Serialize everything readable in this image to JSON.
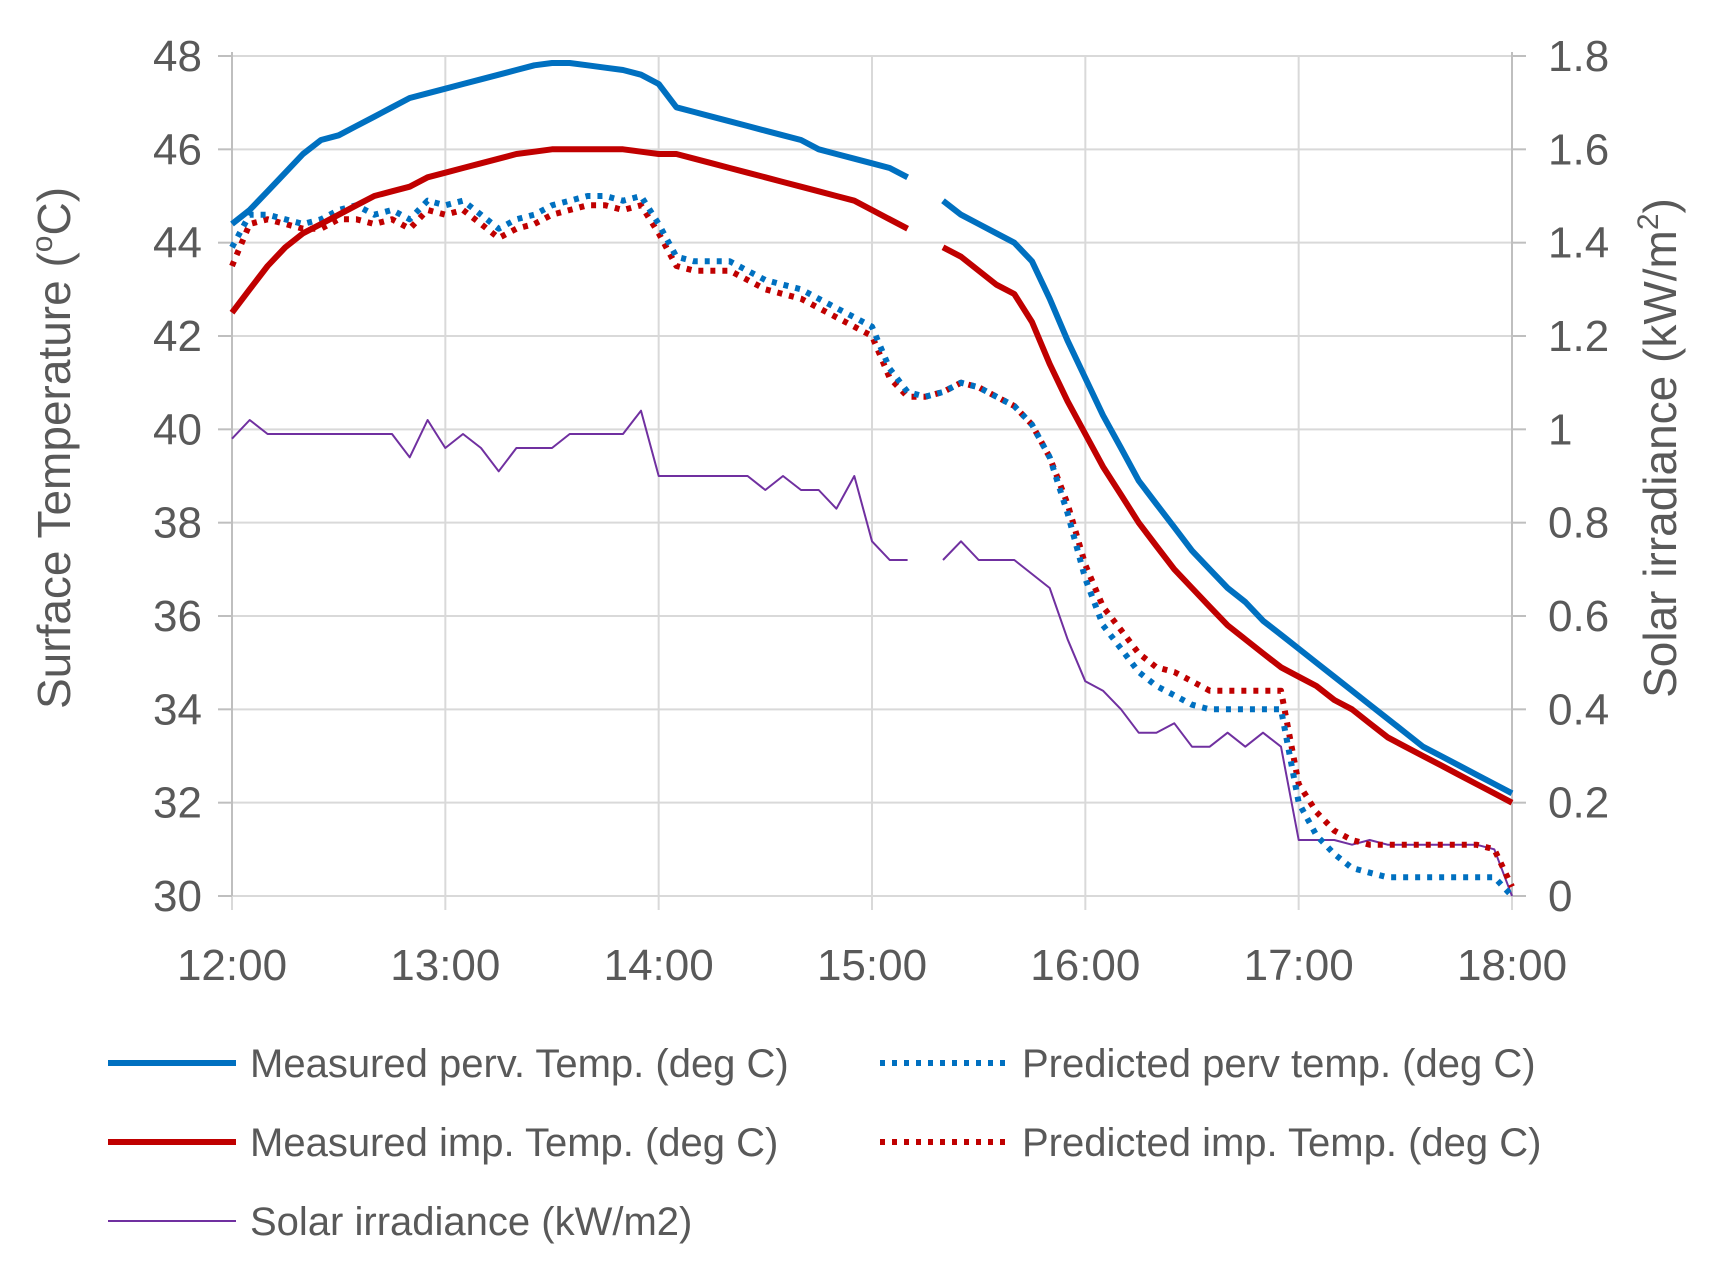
{
  "chart_data": {
    "type": "line",
    "y_label_text": "Surface Temperature (",
    "y_label_unit": "C)",
    "y_label_sup": "o",
    "y2_label_text": "Solar irradiance (kW/m",
    "y2_label_sup": "2",
    "y2_label_end": ")",
    "xlabel": "",
    "x_range": [
      12,
      18
    ],
    "ylim": [
      30,
      48
    ],
    "y2lim": [
      0,
      1.8
    ],
    "x_ticks": [
      12,
      13,
      14,
      15,
      16,
      17,
      18
    ],
    "x_tick_labels": [
      "12:00",
      "13:00",
      "14:00",
      "15:00",
      "16:00",
      "17:00",
      "18:00"
    ],
    "y_ticks": [
      30,
      32,
      34,
      36,
      38,
      40,
      42,
      44,
      46,
      48
    ],
    "y_tick_labels": [
      "30",
      "32",
      "34",
      "36",
      "38",
      "40",
      "42",
      "44",
      "46",
      "48"
    ],
    "y2_ticks": [
      0,
      0.2,
      0.4,
      0.6,
      0.8,
      1,
      1.2,
      1.4,
      1.6,
      1.8
    ],
    "y2_tick_labels": [
      "0",
      "0.2",
      "0.4",
      "0.6",
      "0.8",
      "1",
      "1.2",
      "1.4",
      "1.6",
      "1.8"
    ],
    "grid": true,
    "legend_position": "bottom",
    "series": [
      {
        "name": "Measured perv. Temp. (deg C)",
        "axis": "left",
        "color": "#0070C0",
        "style": "solid",
        "weight": "thick",
        "x": [
          12.0,
          12.083,
          12.167,
          12.25,
          12.333,
          12.417,
          12.5,
          12.583,
          12.667,
          12.75,
          12.833,
          12.917,
          13.0,
          13.083,
          13.167,
          13.25,
          13.333,
          13.417,
          13.5,
          13.583,
          13.667,
          13.75,
          13.833,
          13.917,
          14.0,
          14.083,
          14.167,
          14.25,
          14.333,
          14.417,
          14.5,
          14.583,
          14.667,
          14.75,
          14.833,
          14.917,
          15.0,
          15.083,
          15.167,
          null,
          15.333,
          15.417,
          15.5,
          15.583,
          15.667,
          15.75,
          15.833,
          15.917,
          16.0,
          16.083,
          16.167,
          16.25,
          16.333,
          16.417,
          16.5,
          16.583,
          16.667,
          16.75,
          16.833,
          16.917,
          17.0,
          17.083,
          17.167,
          17.25,
          17.333,
          17.417,
          17.5,
          17.583,
          17.667,
          17.75,
          17.833,
          17.917,
          18.0
        ],
        "values": [
          44.4,
          44.7,
          45.1,
          45.5,
          45.9,
          46.2,
          46.3,
          46.5,
          46.7,
          46.9,
          47.1,
          47.2,
          47.3,
          47.4,
          47.5,
          47.6,
          47.7,
          47.8,
          47.85,
          47.85,
          47.8,
          47.75,
          47.7,
          47.6,
          47.4,
          46.9,
          46.8,
          46.7,
          46.6,
          46.5,
          46.4,
          46.3,
          46.2,
          46.0,
          45.9,
          45.8,
          45.7,
          45.6,
          45.4,
          null,
          44.9,
          44.6,
          44.4,
          44.2,
          44.0,
          43.6,
          42.8,
          41.9,
          41.1,
          40.3,
          39.6,
          38.9,
          38.4,
          37.9,
          37.4,
          37.0,
          36.6,
          36.3,
          35.9,
          35.6,
          35.3,
          35.0,
          34.7,
          34.4,
          34.1,
          33.8,
          33.5,
          33.2,
          33.0,
          32.8,
          32.6,
          32.4,
          32.2
        ]
      },
      {
        "name": "Measured imp. Temp. (deg C)",
        "axis": "left",
        "color": "#C00000",
        "style": "solid",
        "weight": "thick",
        "x": [
          12.0,
          12.083,
          12.167,
          12.25,
          12.333,
          12.417,
          12.5,
          12.583,
          12.667,
          12.75,
          12.833,
          12.917,
          13.0,
          13.083,
          13.167,
          13.25,
          13.333,
          13.417,
          13.5,
          13.583,
          13.667,
          13.75,
          13.833,
          13.917,
          14.0,
          14.083,
          14.167,
          14.25,
          14.333,
          14.417,
          14.5,
          14.583,
          14.667,
          14.75,
          14.833,
          14.917,
          15.0,
          15.083,
          15.167,
          null,
          15.333,
          15.417,
          15.5,
          15.583,
          15.667,
          15.75,
          15.833,
          15.917,
          16.0,
          16.083,
          16.167,
          16.25,
          16.333,
          16.417,
          16.5,
          16.583,
          16.667,
          16.75,
          16.833,
          16.917,
          17.0,
          17.083,
          17.167,
          17.25,
          17.333,
          17.417,
          17.5,
          17.583,
          17.667,
          17.75,
          17.833,
          17.917,
          18.0
        ],
        "values": [
          42.5,
          43.0,
          43.5,
          43.9,
          44.2,
          44.4,
          44.6,
          44.8,
          45.0,
          45.1,
          45.2,
          45.4,
          45.5,
          45.6,
          45.7,
          45.8,
          45.9,
          45.95,
          46.0,
          46.0,
          46.0,
          46.0,
          46.0,
          45.95,
          45.9,
          45.9,
          45.8,
          45.7,
          45.6,
          45.5,
          45.4,
          45.3,
          45.2,
          45.1,
          45.0,
          44.9,
          44.7,
          44.5,
          44.3,
          null,
          43.9,
          43.7,
          43.4,
          43.1,
          42.9,
          42.3,
          41.4,
          40.6,
          39.9,
          39.2,
          38.6,
          38.0,
          37.5,
          37.0,
          36.6,
          36.2,
          35.8,
          35.5,
          35.2,
          34.9,
          34.7,
          34.5,
          34.2,
          34.0,
          33.7,
          33.4,
          33.2,
          33.0,
          32.8,
          32.6,
          32.4,
          32.2,
          32.0
        ]
      },
      {
        "name": "Predicted perv temp. (deg C)",
        "axis": "left",
        "color": "#0070C0",
        "style": "dotted",
        "weight": "thick",
        "x": [
          12.0,
          12.083,
          12.167,
          12.25,
          12.333,
          12.417,
          12.5,
          12.583,
          12.667,
          12.75,
          12.833,
          12.917,
          13.0,
          13.083,
          13.167,
          13.25,
          13.333,
          13.417,
          13.5,
          13.583,
          13.667,
          13.75,
          13.833,
          13.917,
          14.0,
          14.083,
          14.167,
          14.25,
          14.333,
          14.417,
          14.5,
          14.583,
          14.667,
          14.75,
          14.833,
          14.917,
          15.0,
          15.083,
          15.167,
          15.25,
          15.333,
          15.417,
          15.5,
          15.583,
          15.667,
          15.75,
          15.833,
          15.917,
          16.0,
          16.083,
          16.167,
          16.25,
          16.333,
          16.417,
          16.5,
          16.583,
          16.667,
          16.75,
          16.833,
          16.917,
          17.0,
          17.083,
          17.167,
          17.25,
          17.333,
          17.417,
          17.5,
          17.583,
          17.667,
          17.75,
          17.833,
          17.917,
          18.0
        ],
        "values": [
          43.9,
          44.6,
          44.6,
          44.5,
          44.4,
          44.5,
          44.7,
          44.8,
          44.6,
          44.7,
          44.5,
          44.9,
          44.8,
          44.9,
          44.6,
          44.3,
          44.5,
          44.6,
          44.8,
          44.9,
          45.0,
          45.0,
          44.9,
          45.0,
          44.4,
          43.7,
          43.6,
          43.6,
          43.6,
          43.4,
          43.2,
          43.1,
          43.0,
          42.8,
          42.6,
          42.4,
          42.2,
          41.3,
          40.8,
          40.7,
          40.8,
          41.0,
          40.9,
          40.7,
          40.5,
          40.1,
          39.4,
          38.2,
          36.8,
          35.8,
          35.3,
          34.8,
          34.5,
          34.3,
          34.1,
          34.0,
          34.0,
          34.0,
          34.0,
          34.0,
          32.0,
          31.3,
          30.9,
          30.6,
          30.5,
          30.4,
          30.4,
          30.4,
          30.4,
          30.4,
          30.4,
          30.4,
          30.0
        ]
      },
      {
        "name": "Predicted imp. Temp. (deg C)",
        "axis": "left",
        "color": "#C00000",
        "style": "dotted",
        "weight": "thick",
        "x": [
          12.0,
          12.083,
          12.167,
          12.25,
          12.333,
          12.417,
          12.5,
          12.583,
          12.667,
          12.75,
          12.833,
          12.917,
          13.0,
          13.083,
          13.167,
          13.25,
          13.333,
          13.417,
          13.5,
          13.583,
          13.667,
          13.75,
          13.833,
          13.917,
          14.0,
          14.083,
          14.167,
          14.25,
          14.333,
          14.417,
          14.5,
          14.583,
          14.667,
          14.75,
          14.833,
          14.917,
          15.0,
          15.083,
          15.167,
          15.25,
          15.333,
          15.417,
          15.5,
          15.583,
          15.667,
          15.75,
          15.833,
          15.917,
          16.0,
          16.083,
          16.167,
          16.25,
          16.333,
          16.417,
          16.5,
          16.583,
          16.667,
          16.75,
          16.833,
          16.917,
          17.0,
          17.083,
          17.167,
          17.25,
          17.333,
          17.417,
          17.5,
          17.583,
          17.667,
          17.75,
          17.833,
          17.917,
          18.0
        ],
        "values": [
          43.5,
          44.4,
          44.5,
          44.4,
          44.3,
          44.3,
          44.5,
          44.5,
          44.4,
          44.5,
          44.3,
          44.7,
          44.6,
          44.7,
          44.4,
          44.1,
          44.3,
          44.4,
          44.6,
          44.7,
          44.8,
          44.8,
          44.7,
          44.8,
          44.2,
          43.5,
          43.4,
          43.4,
          43.4,
          43.2,
          43.0,
          42.9,
          42.8,
          42.6,
          42.4,
          42.2,
          42.0,
          41.1,
          40.7,
          40.7,
          40.8,
          41.0,
          40.9,
          40.7,
          40.5,
          40.1,
          39.4,
          38.4,
          37.1,
          36.2,
          35.7,
          35.2,
          34.9,
          34.8,
          34.6,
          34.4,
          34.4,
          34.4,
          34.4,
          34.4,
          32.4,
          31.8,
          31.4,
          31.2,
          31.1,
          31.1,
          31.1,
          31.1,
          31.1,
          31.1,
          31.1,
          31.0,
          30.2
        ]
      },
      {
        "name": "Solar irradiance (kW/m2)",
        "axis": "right",
        "color": "#7030A0",
        "style": "solid",
        "weight": "thin",
        "x": [
          12.0,
          12.083,
          12.167,
          12.25,
          12.333,
          12.417,
          12.5,
          12.583,
          12.667,
          12.75,
          12.833,
          12.917,
          12.958,
          13.0,
          13.083,
          13.167,
          13.25,
          13.333,
          13.417,
          13.5,
          13.583,
          13.667,
          13.75,
          13.833,
          13.917,
          14.0,
          14.083,
          14.167,
          14.25,
          14.333,
          14.417,
          14.5,
          14.583,
          14.667,
          14.75,
          14.833,
          14.917,
          15.0,
          15.083,
          15.167,
          null,
          15.333,
          15.417,
          15.5,
          15.583,
          15.667,
          15.75,
          15.833,
          15.917,
          16.0,
          16.083,
          16.167,
          16.25,
          16.333,
          16.417,
          16.5,
          16.583,
          16.667,
          16.75,
          16.833,
          16.917,
          17.0,
          17.083,
          17.167,
          17.25,
          17.333,
          17.417,
          17.5,
          17.583,
          17.667,
          17.75,
          17.833,
          17.917,
          18.0
        ],
        "values": [
          0.98,
          1.02,
          0.99,
          0.99,
          0.99,
          0.99,
          0.99,
          0.99,
          0.99,
          0.99,
          0.94,
          1.02,
          0.99,
          0.96,
          0.99,
          0.96,
          0.91,
          0.96,
          0.96,
          0.96,
          0.99,
          0.99,
          0.99,
          0.99,
          1.04,
          0.9,
          0.9,
          0.9,
          0.9,
          0.9,
          0.9,
          0.87,
          0.9,
          0.87,
          0.87,
          0.83,
          0.9,
          0.76,
          0.72,
          0.72,
          null,
          0.72,
          0.76,
          0.72,
          0.72,
          0.72,
          0.69,
          0.66,
          0.55,
          0.46,
          0.44,
          0.4,
          0.35,
          0.35,
          0.37,
          0.32,
          0.32,
          0.35,
          0.32,
          0.35,
          0.32,
          0.12,
          0.12,
          0.12,
          0.11,
          0.12,
          0.11,
          0.11,
          0.11,
          0.11,
          0.11,
          0.11,
          0.1,
          0.0
        ]
      }
    ]
  }
}
